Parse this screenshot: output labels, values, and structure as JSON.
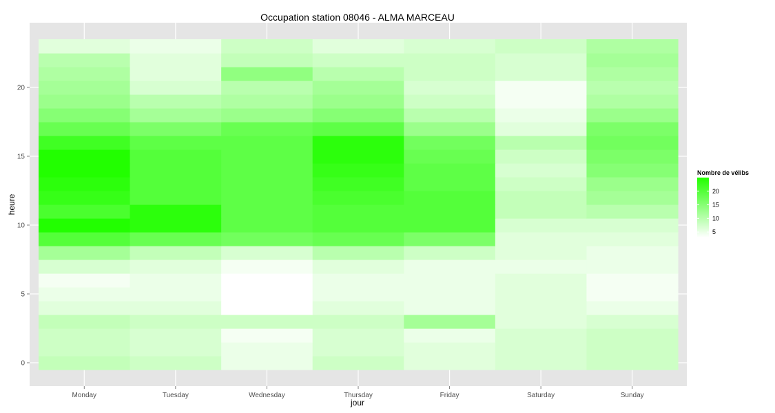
{
  "chart_data": {
    "type": "heatmap",
    "title": "Occupation station 08046 - ALMA MARCEAU",
    "xlabel": "jour",
    "ylabel": "heure",
    "x_categories": [
      "Monday",
      "Tuesday",
      "Wednesday",
      "Thursday",
      "Friday",
      "Saturday",
      "Sunday"
    ],
    "y_hours": [
      0,
      1,
      2,
      3,
      4,
      5,
      6,
      7,
      8,
      9,
      10,
      11,
      12,
      13,
      14,
      15,
      16,
      17,
      18,
      19,
      20,
      21,
      22,
      23
    ],
    "y_ticks": [
      0,
      5,
      10,
      15,
      20
    ],
    "ylim": [
      -0.5,
      23.5
    ],
    "grid": true,
    "values": [
      [
        9,
        8,
        5,
        8,
        6,
        7,
        8
      ],
      [
        8,
        7,
        5,
        7,
        6,
        7,
        8
      ],
      [
        8,
        7,
        4,
        7,
        5,
        7,
        8
      ],
      [
        9,
        8,
        8,
        8,
        12,
        6,
        7
      ],
      [
        6,
        6,
        3,
        6,
        5,
        6,
        5
      ],
      [
        5,
        5,
        3,
        5,
        5,
        6,
        4
      ],
      [
        4,
        5,
        3,
        5,
        5,
        6,
        4
      ],
      [
        7,
        6,
        4,
        6,
        5,
        5,
        5
      ],
      [
        12,
        9,
        7,
        10,
        8,
        6,
        5
      ],
      [
        20,
        18,
        17,
        18,
        16,
        6,
        6
      ],
      [
        25,
        24,
        19,
        20,
        20,
        7,
        7
      ],
      [
        21,
        24,
        19,
        20,
        20,
        9,
        10
      ],
      [
        23,
        20,
        19,
        21,
        20,
        9,
        12
      ],
      [
        24,
        20,
        19,
        22,
        19,
        8,
        13
      ],
      [
        25,
        20,
        19,
        23,
        19,
        7,
        15
      ],
      [
        25,
        20,
        19,
        24,
        18,
        8,
        16
      ],
      [
        22,
        19,
        19,
        24,
        17,
        10,
        17
      ],
      [
        18,
        16,
        18,
        19,
        13,
        6,
        16
      ],
      [
        15,
        12,
        13,
        15,
        10,
        5,
        13
      ],
      [
        13,
        10,
        11,
        13,
        8,
        4,
        11
      ],
      [
        12,
        7,
        10,
        12,
        7,
        4,
        10
      ],
      [
        11,
        6,
        14,
        10,
        8,
        7,
        11
      ],
      [
        10,
        6,
        9,
        8,
        8,
        7,
        12
      ],
      [
        6,
        5,
        8,
        6,
        7,
        8,
        11
      ]
    ],
    "legend": {
      "title": "Nombre de vélibs",
      "breaks": [
        5,
        10,
        15,
        20
      ],
      "range": [
        3,
        25
      ],
      "position": "right"
    },
    "colors": {
      "low": "#ffffff",
      "high": "#22ff00",
      "panel": "#e5e5e5",
      "grid_major": "#ffffff",
      "tick_label": "#4d4d4d"
    }
  }
}
